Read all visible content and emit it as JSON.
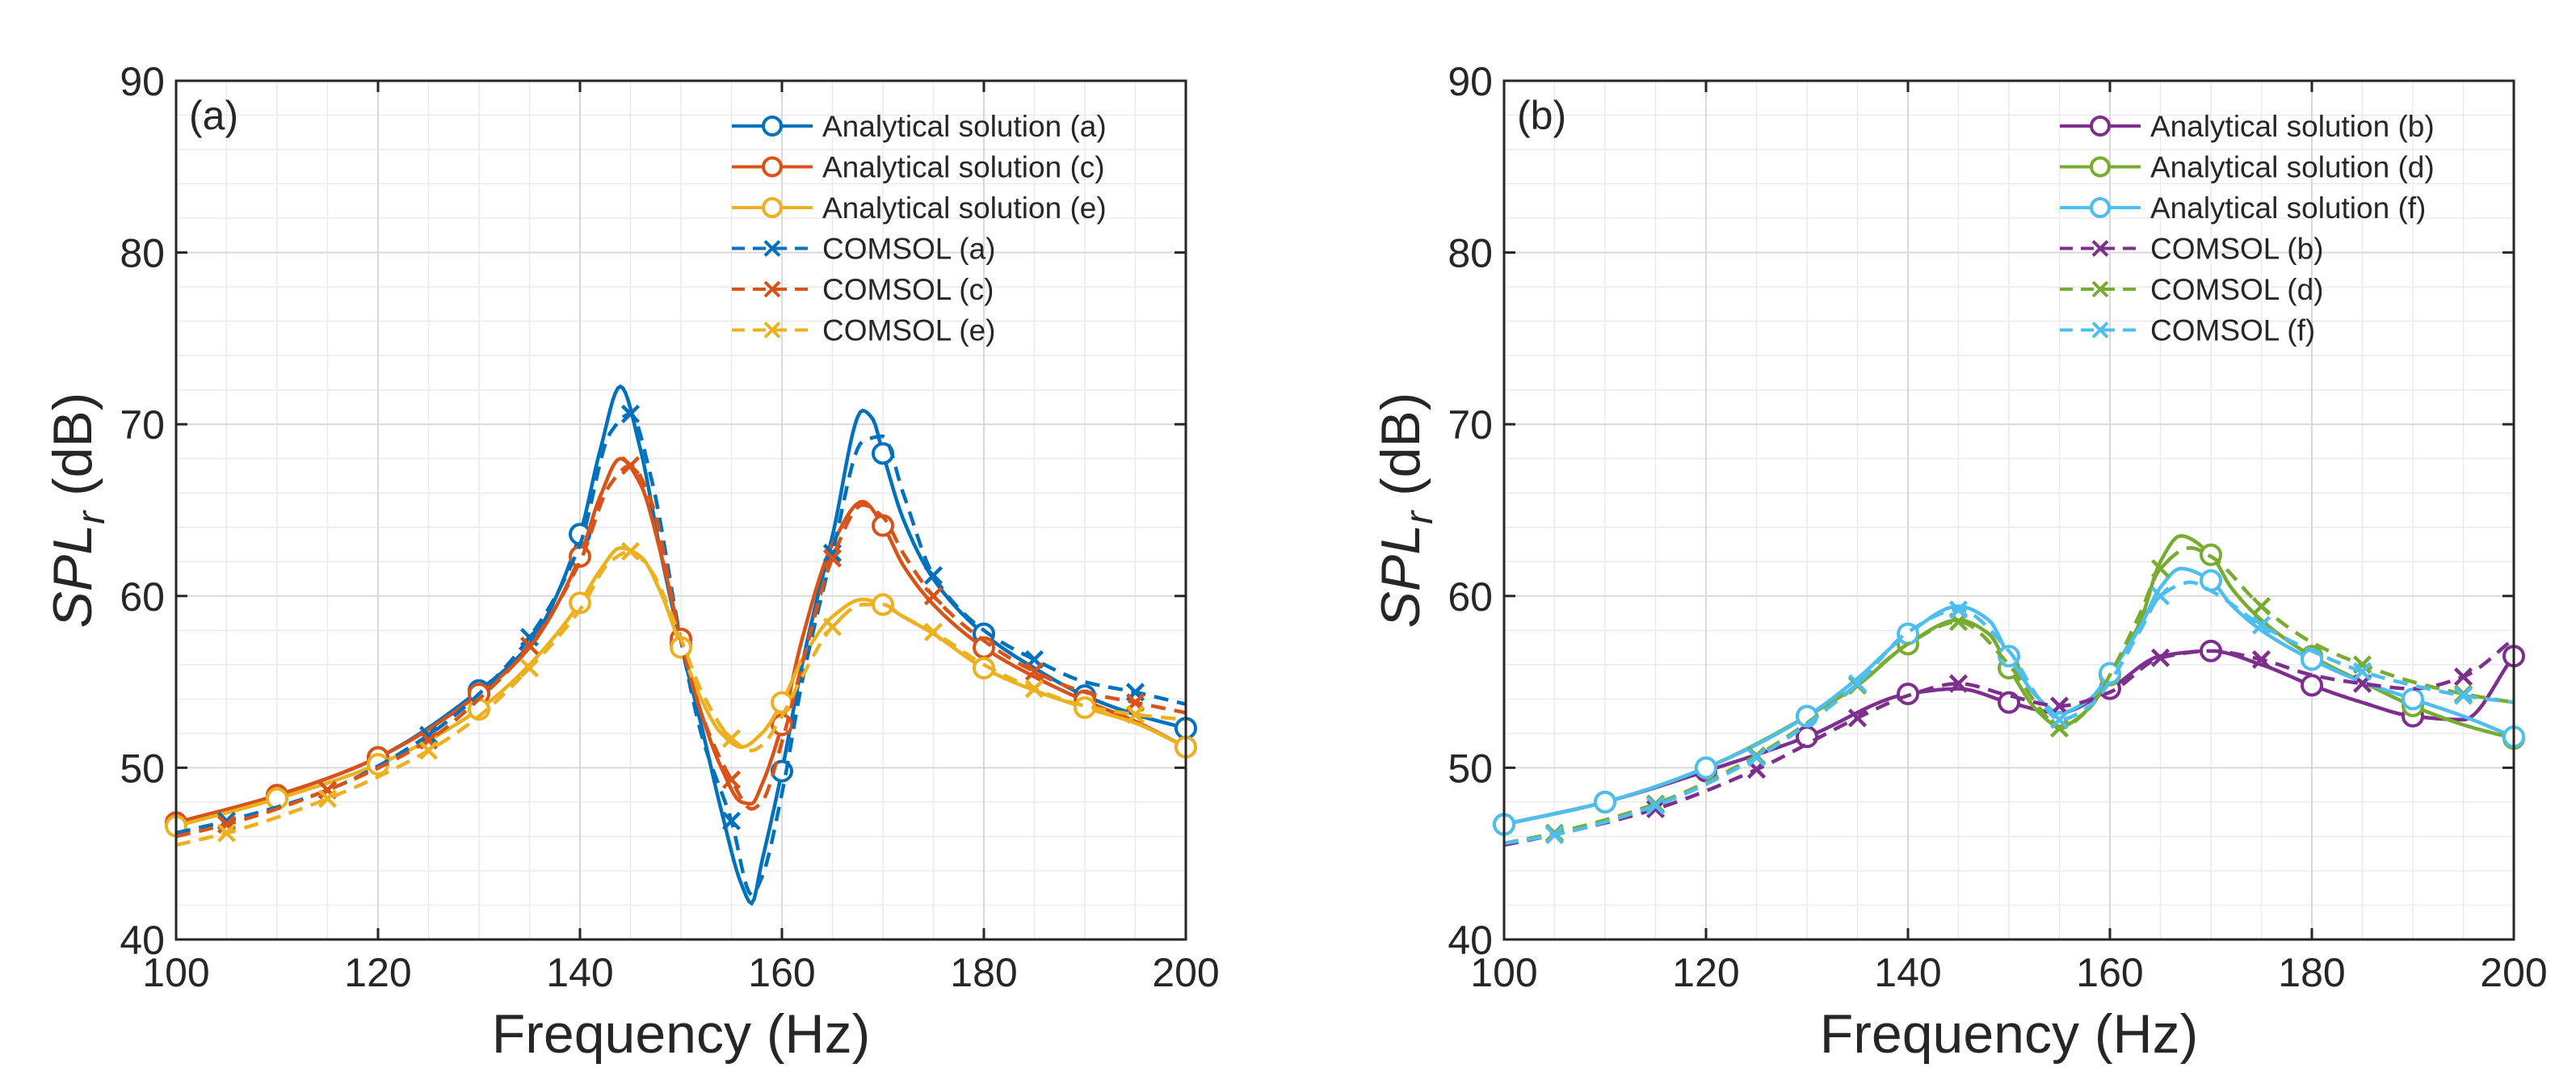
{
  "chart_data": [
    {
      "type": "line",
      "panel_label": "(a)",
      "xlabel": "Frequency (Hz)",
      "ylabel": "SPL_r (dB)",
      "xlim": [
        100,
        200
      ],
      "ylim": [
        40,
        90
      ],
      "xticks": [
        100,
        120,
        140,
        160,
        180,
        200
      ],
      "yticks": [
        40,
        50,
        60,
        70,
        80,
        90
      ],
      "grid": true,
      "legend_position": "top-right",
      "series": [
        {
          "name": "Analytical solution (a)",
          "color": "#0072BD",
          "style": "solid",
          "marker": "circle",
          "x": [
            100,
            110,
            120,
            130,
            135,
            140,
            142,
            144,
            146,
            148,
            150,
            152,
            154,
            156,
            157,
            158,
            160,
            162,
            165,
            168,
            169,
            170,
            172,
            175,
            180,
            185,
            190,
            195,
            200
          ],
          "y": [
            46.8,
            48.4,
            50.6,
            54.5,
            57.2,
            63.6,
            68.5,
            72.2,
            68.5,
            62.5,
            57.2,
            52.5,
            47.5,
            43.2,
            42.1,
            44.5,
            49.8,
            56.0,
            63.5,
            70.8,
            70.3,
            68.3,
            64.5,
            61.0,
            57.8,
            55.8,
            54.2,
            53.1,
            52.3
          ],
          "marker_x": [
            100,
            110,
            120,
            130,
            140,
            150,
            160,
            170,
            180,
            190,
            200
          ]
        },
        {
          "name": "Analytical solution (c)",
          "color": "#D95319",
          "style": "solid",
          "marker": "circle",
          "x": [
            100,
            110,
            120,
            130,
            135,
            140,
            142,
            144,
            146,
            148,
            150,
            152,
            154,
            156,
            157,
            158,
            160,
            162,
            165,
            168,
            170,
            172,
            175,
            180,
            185,
            190,
            195,
            200
          ],
          "y": [
            46.8,
            48.4,
            50.6,
            54.3,
            57.0,
            62.3,
            65.8,
            68.0,
            66.5,
            62.5,
            57.5,
            53.2,
            50.0,
            48.0,
            47.9,
            49.0,
            52.5,
            57.5,
            63.0,
            65.5,
            64.1,
            61.8,
            59.5,
            57.0,
            55.3,
            53.9,
            52.7,
            51.2
          ],
          "marker_x": [
            100,
            110,
            120,
            130,
            140,
            150,
            160,
            170,
            180,
            190,
            200
          ]
        },
        {
          "name": "Analytical solution (e)",
          "color": "#EDB120",
          "style": "solid",
          "marker": "circle",
          "x": [
            100,
            110,
            120,
            130,
            135,
            140,
            142,
            144,
            146,
            148,
            150,
            152,
            154,
            156,
            158,
            160,
            162,
            165,
            168,
            170,
            172,
            175,
            180,
            185,
            190,
            195,
            200
          ],
          "y": [
            46.6,
            48.2,
            50.2,
            53.4,
            56.0,
            59.6,
            61.5,
            62.8,
            62.3,
            60.2,
            57.0,
            54.0,
            52.0,
            51.2,
            52.0,
            53.8,
            56.3,
            58.8,
            59.8,
            59.5,
            58.8,
            57.8,
            55.8,
            54.5,
            53.5,
            52.6,
            51.2
          ],
          "marker_x": [
            100,
            110,
            120,
            130,
            140,
            150,
            160,
            170,
            180,
            190,
            200
          ]
        },
        {
          "name": "COMSOL (a)",
          "color": "#0072BD",
          "style": "dashed",
          "marker": "x",
          "x": [
            100,
            105,
            115,
            125,
            130,
            135,
            140,
            143,
            145,
            147,
            150,
            152,
            155,
            157,
            158,
            160,
            162,
            165,
            168,
            170,
            172,
            175,
            180,
            185,
            190,
            195,
            200
          ],
          "y": [
            46.2,
            46.9,
            48.7,
            51.9,
            54.3,
            57.6,
            63.0,
            69.5,
            70.6,
            67.0,
            57.4,
            52.0,
            46.9,
            42.6,
            43.6,
            48.5,
            55.0,
            62.5,
            69.0,
            69.3,
            66.0,
            61.2,
            58.0,
            56.3,
            55.0,
            54.4,
            53.7
          ],
          "marker_x": [
            105,
            115,
            125,
            135,
            145,
            155,
            165,
            175,
            185,
            195
          ]
        },
        {
          "name": "COMSOL (c)",
          "color": "#D95319",
          "style": "dashed",
          "marker": "x",
          "x": [
            100,
            105,
            115,
            125,
            130,
            135,
            140,
            143,
            145,
            147,
            150,
            152,
            155,
            157,
            158,
            160,
            162,
            165,
            168,
            170,
            172,
            175,
            180,
            185,
            190,
            195,
            200
          ],
          "y": [
            46.0,
            46.7,
            48.7,
            51.6,
            54.0,
            57.1,
            62.0,
            66.5,
            67.6,
            65.6,
            57.4,
            53.2,
            49.3,
            47.6,
            48.0,
            51.5,
            56.0,
            62.2,
            65.3,
            64.6,
            62.5,
            60.0,
            57.4,
            55.6,
            54.4,
            53.8,
            53.2
          ],
          "marker_x": [
            105,
            115,
            125,
            135,
            145,
            155,
            165,
            175,
            185,
            195
          ]
        },
        {
          "name": "COMSOL (e)",
          "color": "#EDB120",
          "style": "dashed",
          "marker": "x",
          "x": [
            100,
            105,
            115,
            125,
            130,
            135,
            140,
            143,
            145,
            147,
            150,
            152,
            155,
            157,
            158,
            160,
            162,
            165,
            168,
            170,
            172,
            175,
            180,
            185,
            190,
            195,
            200
          ],
          "y": [
            45.5,
            46.2,
            48.2,
            51.0,
            53.0,
            55.8,
            59.2,
            62.0,
            62.6,
            61.5,
            57.5,
            54.5,
            51.7,
            51.0,
            51.3,
            53.0,
            55.3,
            58.2,
            59.5,
            59.5,
            58.8,
            57.9,
            56.0,
            54.6,
            53.6,
            53.1,
            52.8
          ],
          "marker_x": [
            105,
            115,
            125,
            135,
            145,
            155,
            165,
            175,
            185,
            195
          ]
        }
      ]
    },
    {
      "type": "line",
      "panel_label": "(b)",
      "xlabel": "Frequency (Hz)",
      "ylabel": "SPL_r (dB)",
      "xlim": [
        100,
        200
      ],
      "ylim": [
        40,
        90
      ],
      "xticks": [
        100,
        120,
        140,
        160,
        180,
        200
      ],
      "yticks": [
        40,
        50,
        60,
        70,
        80,
        90
      ],
      "grid": true,
      "legend_position": "top-right",
      "series": [
        {
          "name": "Analytical solution (b)",
          "color": "#7E2F8E",
          "style": "solid",
          "marker": "circle",
          "x": [
            100,
            110,
            120,
            130,
            140,
            145,
            150,
            155,
            160,
            165,
            170,
            175,
            180,
            185,
            190,
            195,
            200
          ],
          "y": [
            46.7,
            48.0,
            49.8,
            51.8,
            54.3,
            54.6,
            53.8,
            53.2,
            54.6,
            56.5,
            56.8,
            56.0,
            54.8,
            53.8,
            53.0,
            52.8,
            56.5
          ],
          "marker_x": [
            100,
            110,
            120,
            130,
            140,
            150,
            160,
            170,
            180,
            190,
            200
          ]
        },
        {
          "name": "Analytical solution (d)",
          "color": "#77AC30",
          "style": "solid",
          "marker": "circle",
          "x": [
            100,
            110,
            120,
            130,
            135,
            140,
            145,
            148,
            150,
            153,
            155,
            158,
            160,
            163,
            165,
            167,
            170,
            172,
            175,
            180,
            185,
            190,
            195,
            200
          ],
          "y": [
            46.7,
            48.0,
            50.0,
            53.0,
            54.8,
            57.2,
            58.6,
            57.8,
            55.8,
            53.2,
            52.4,
            53.5,
            55.4,
            58.5,
            62.0,
            63.5,
            62.4,
            60.5,
            58.6,
            56.5,
            55.0,
            53.6,
            52.5,
            51.7
          ],
          "marker_x": [
            100,
            110,
            120,
            130,
            140,
            150,
            160,
            170,
            180,
            190,
            200
          ]
        },
        {
          "name": "Analytical solution (f)",
          "color": "#4DBEEE",
          "style": "solid",
          "marker": "circle",
          "x": [
            100,
            110,
            120,
            130,
            135,
            140,
            145,
            148,
            150,
            153,
            155,
            158,
            160,
            163,
            165,
            167,
            170,
            172,
            175,
            180,
            185,
            190,
            195,
            200
          ],
          "y": [
            46.7,
            48.0,
            50.0,
            53.0,
            55.2,
            57.8,
            59.4,
            58.6,
            56.5,
            54.0,
            53.2,
            54.0,
            55.5,
            58.2,
            60.5,
            61.6,
            60.9,
            59.5,
            58.0,
            56.3,
            55.0,
            54.0,
            53.0,
            51.8
          ],
          "marker_x": [
            100,
            110,
            120,
            130,
            140,
            150,
            160,
            170,
            180,
            190,
            200
          ]
        },
        {
          "name": "COMSOL (b)",
          "color": "#7E2F8E",
          "style": "dashed",
          "marker": "x",
          "x": [
            100,
            105,
            115,
            125,
            135,
            140,
            145,
            150,
            155,
            160,
            165,
            170,
            175,
            180,
            185,
            190,
            195,
            200
          ],
          "y": [
            45.5,
            46.1,
            47.6,
            49.9,
            52.9,
            54.2,
            54.9,
            54.2,
            53.6,
            54.4,
            56.4,
            56.8,
            56.3,
            55.4,
            54.9,
            54.6,
            55.3,
            57.5
          ],
          "marker_x": [
            105,
            115,
            125,
            135,
            145,
            155,
            165,
            175,
            185,
            195
          ]
        },
        {
          "name": "COMSOL (d)",
          "color": "#77AC30",
          "style": "dashed",
          "marker": "x",
          "x": [
            100,
            105,
            115,
            125,
            135,
            140,
            145,
            150,
            153,
            155,
            158,
            160,
            163,
            165,
            168,
            170,
            175,
            180,
            185,
            190,
            195,
            200
          ],
          "y": [
            45.6,
            46.2,
            47.9,
            50.7,
            54.8,
            57.2,
            58.5,
            56.0,
            53.5,
            52.3,
            53.5,
            55.4,
            59.0,
            61.6,
            62.8,
            62.3,
            59.4,
            57.3,
            56.0,
            55.0,
            54.3,
            53.8
          ],
          "marker_x": [
            105,
            115,
            125,
            135,
            145,
            155,
            165,
            175,
            185,
            195
          ]
        },
        {
          "name": "COMSOL (f)",
          "color": "#4DBEEE",
          "style": "dashed",
          "marker": "x",
          "x": [
            100,
            105,
            115,
            125,
            135,
            140,
            145,
            150,
            153,
            155,
            158,
            160,
            163,
            165,
            168,
            170,
            175,
            180,
            185,
            190,
            195,
            200
          ],
          "y": [
            45.6,
            46.1,
            47.8,
            50.6,
            54.9,
            57.9,
            59.2,
            56.8,
            54.0,
            52.8,
            53.6,
            55.0,
            58.0,
            60.0,
            60.8,
            60.3,
            58.3,
            56.8,
            55.6,
            54.8,
            54.2,
            53.8
          ],
          "marker_x": [
            105,
            115,
            125,
            135,
            145,
            155,
            165,
            175,
            185,
            195
          ]
        }
      ]
    }
  ]
}
